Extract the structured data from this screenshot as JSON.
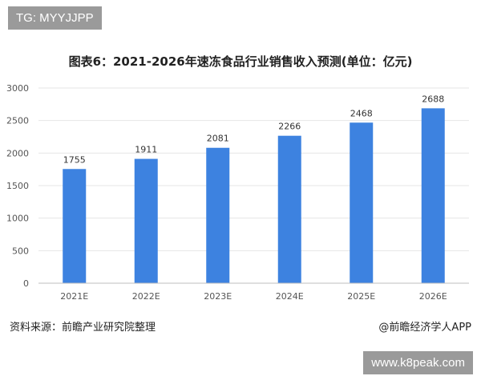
{
  "watermark_top": "TG: MYYJJPP",
  "watermark_bottom": "www.k8peak.com",
  "source": "资料来源：前瞻产业研究院整理",
  "brand": "@前瞻经济学人APP",
  "colors": {
    "bar": "#3d82e0",
    "gridline": "#e6e6e6",
    "axis": "#bfbfbf"
  },
  "chart_data": {
    "type": "bar",
    "title": "图表6：2021-2026年速冻食品行业销售收入预测(单位：亿元)",
    "categories": [
      "2021E",
      "2022E",
      "2023E",
      "2024E",
      "2025E",
      "2026E"
    ],
    "values": [
      1755,
      1911,
      2081,
      2266,
      2468,
      2688
    ],
    "data_labels": [
      "1755",
      "1911",
      "2081",
      "2266",
      "2468",
      "2688"
    ],
    "ylim": [
      0,
      3000
    ],
    "yticks": [
      0,
      500,
      1000,
      1500,
      2000,
      2500,
      3000
    ],
    "xlabel": "",
    "ylabel": "",
    "grid": true,
    "legend": "none"
  }
}
